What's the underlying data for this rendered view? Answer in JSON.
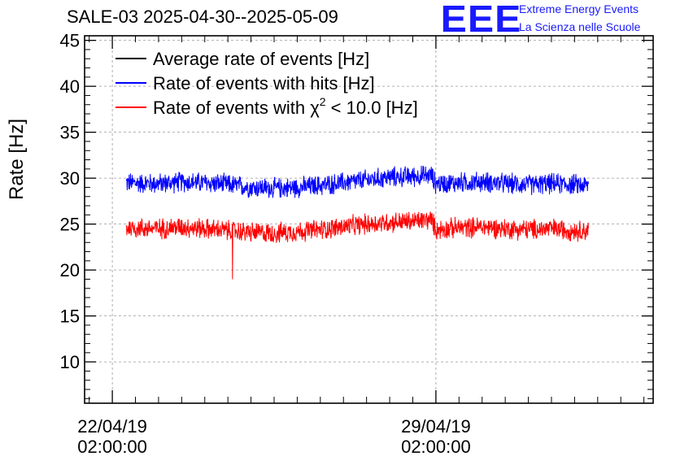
{
  "header": {
    "title": "SALE-03 2025-04-30--2025-05-09",
    "logo_text": "EEE",
    "logo_line1": "Extreme Energy Events",
    "logo_line2": "La Scienza nelle Scuole"
  },
  "chart_data": {
    "type": "line",
    "title": "SALE-03 2025-04-30--2025-05-09",
    "xlabel": "",
    "ylabel": "Rate [Hz]",
    "ylim": [
      5.5,
      45.5
    ],
    "yticks": [
      10,
      15,
      20,
      25,
      30,
      35,
      40,
      45
    ],
    "xlim_days": [
      -0.6,
      11.7
    ],
    "xticks": [
      {
        "day": 0,
        "label1": "22/04/19",
        "label2": "02:00:00"
      },
      {
        "day": 7,
        "label1": "29/04/19",
        "label2": "02:00:00"
      }
    ],
    "grid": true,
    "legend_position": "top-left",
    "series": [
      {
        "name": "Average rate of events [Hz]",
        "color": "#000000",
        "visible_data": false,
        "x_days": [],
        "values": []
      },
      {
        "name": "Rate of events with hits [Hz]",
        "color": "#0000ff",
        "x_days": [
          0.3,
          1.0,
          1.5,
          2.0,
          2.5,
          3.0,
          3.5,
          4.0,
          4.5,
          5.0,
          5.5,
          6.0,
          6.5,
          6.9,
          7.0,
          7.5,
          8.0,
          8.5,
          9.0,
          9.5,
          10.0,
          10.3
        ],
        "values": [
          29.5,
          29.4,
          29.6,
          29.5,
          29.3,
          29.0,
          28.9,
          29.0,
          29.2,
          29.5,
          29.8,
          30.1,
          30.2,
          30.3,
          29.4,
          29.5,
          29.6,
          29.4,
          29.3,
          29.4,
          29.3,
          29.2
        ],
        "noise_amplitude": 1.1
      },
      {
        "name": "Rate of events with χ² < 10.0 [Hz]",
        "legend_prefix": "Rate of events with χ",
        "legend_sup": "2",
        "legend_suffix": " < 10.0 [Hz]",
        "color": "#ff0000",
        "x_days": [
          0.3,
          1.0,
          1.5,
          2.0,
          2.5,
          3.0,
          3.5,
          4.0,
          4.5,
          5.0,
          5.5,
          6.0,
          6.5,
          6.9,
          7.0,
          7.5,
          8.0,
          8.5,
          9.0,
          9.5,
          10.0,
          10.3
        ],
        "values": [
          24.6,
          24.5,
          24.7,
          24.5,
          24.3,
          24.1,
          24.0,
          24.2,
          24.4,
          24.7,
          25.0,
          25.2,
          25.3,
          25.5,
          24.4,
          24.6,
          24.7,
          24.5,
          24.4,
          24.5,
          24.3,
          24.3
        ],
        "noise_amplitude": 1.1,
        "spike": {
          "day": 2.6,
          "value": 19.0
        }
      }
    ]
  }
}
